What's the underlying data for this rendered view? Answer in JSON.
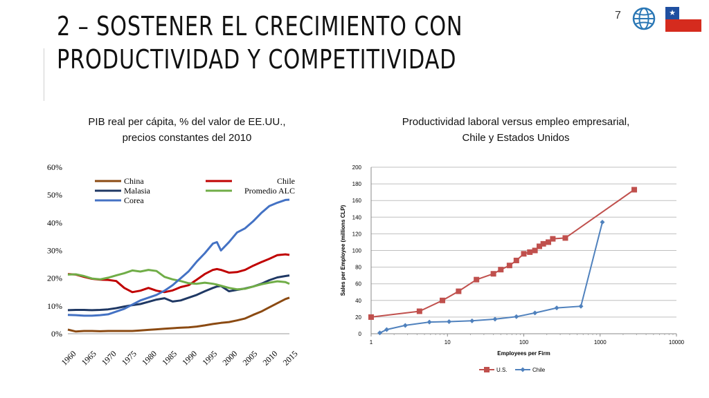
{
  "slide": {
    "title_line1": "2 – SOSTENER EL CRECIMIENTO CON",
    "title_line2": "PRODUCTIVIDAD Y COMPETITIVIDAD",
    "page_number": "7"
  },
  "chart_data": [
    {
      "type": "line",
      "title_line1": "PIB real per cápita, % del valor de EE.UU.,",
      "title_line2": "precios constantes del 2010",
      "x": [
        1960,
        1962,
        1964,
        1966,
        1968,
        1970,
        1972,
        1974,
        1976,
        1978,
        1980,
        1982,
        1984,
        1986,
        1988,
        1990,
        1992,
        1994,
        1996,
        1997,
        1998,
        2000,
        2002,
        2004,
        2006,
        2008,
        2010,
        2012,
        2014,
        2015
      ],
      "series": [
        {
          "name": "China",
          "color": "#8b4a12",
          "values": [
            1.5,
            0.8,
            1.0,
            1.0,
            0.9,
            1.0,
            1.0,
            1.0,
            1.0,
            1.2,
            1.4,
            1.6,
            1.8,
            2.0,
            2.2,
            2.3,
            2.6,
            3.0,
            3.5,
            3.7,
            3.9,
            4.2,
            4.8,
            5.5,
            6.8,
            8.0,
            9.5,
            11.0,
            12.5,
            13.0
          ]
        },
        {
          "name": "Chile",
          "color": "#c00000",
          "values": [
            21.5,
            21.3,
            20.5,
            19.8,
            19.5,
            19.4,
            19.0,
            16.5,
            15.0,
            15.5,
            16.5,
            15.5,
            15.0,
            15.6,
            16.8,
            17.5,
            19.5,
            21.5,
            23.0,
            23.3,
            23.0,
            22.0,
            22.2,
            23.0,
            24.5,
            25.8,
            27.0,
            28.3,
            28.6,
            28.4
          ]
        },
        {
          "name": "Malasia",
          "color": "#1f3864",
          "values": [
            8.5,
            8.6,
            8.6,
            8.5,
            8.6,
            8.8,
            9.2,
            9.8,
            10.3,
            10.7,
            11.5,
            12.3,
            12.8,
            11.6,
            12.0,
            13.0,
            14.0,
            15.3,
            16.5,
            17.0,
            17.2,
            15.3,
            15.8,
            16.3,
            17.0,
            18.0,
            19.3,
            20.3,
            20.8,
            21.0
          ]
        },
        {
          "name": "Promedio ALC",
          "color": "#70ad47",
          "values": [
            21.3,
            21.4,
            20.8,
            19.9,
            19.6,
            20.2,
            21.0,
            21.8,
            22.8,
            22.4,
            23.0,
            22.6,
            20.5,
            19.6,
            19.0,
            18.2,
            18.0,
            18.4,
            18.0,
            17.7,
            17.3,
            16.5,
            16.0,
            16.2,
            17.0,
            17.8,
            18.4,
            18.9,
            18.6,
            18.0
          ]
        },
        {
          "name": "Corea",
          "color": "#4472c4",
          "values": [
            6.8,
            6.7,
            6.5,
            6.5,
            6.7,
            7.0,
            8.0,
            9.0,
            10.5,
            12.0,
            13.0,
            14.0,
            15.5,
            17.5,
            20.0,
            22.5,
            26.0,
            29.0,
            32.5,
            33.0,
            30.0,
            33.0,
            36.5,
            38.0,
            40.5,
            43.5,
            46.0,
            47.2,
            48.2,
            48.3
          ]
        }
      ],
      "ylim": [
        0,
        60
      ],
      "yticks": [
        0,
        10,
        20,
        30,
        40,
        50,
        60
      ],
      "ytick_labels": [
        "0%",
        "10%",
        "20%",
        "30%",
        "40%",
        "50%",
        "60%"
      ],
      "xticks": [
        1960,
        1965,
        1970,
        1975,
        1980,
        1985,
        1990,
        1995,
        2000,
        2005,
        2010,
        2015
      ],
      "legend": "top-inside",
      "grid": false
    },
    {
      "type": "line",
      "title_line1": "Productividad laboral versus empleo empresarial,",
      "title_line2": "Chile y Estados Unidos",
      "xscale": "log",
      "xlim": [
        1,
        10000
      ],
      "xticks": [
        1,
        10,
        100,
        1000,
        10000
      ],
      "xtick_labels": [
        "1",
        "10",
        "100",
        "1000",
        "10000"
      ],
      "ylim": [
        0,
        200
      ],
      "yticks": [
        0,
        20,
        40,
        60,
        80,
        100,
        120,
        140,
        160,
        180,
        200
      ],
      "xlabel": "Employees per Firm",
      "ylabel": "Sales per Employee (millions CLP)",
      "grid": true,
      "legend": "bottom",
      "series": [
        {
          "name": "U.S.",
          "color": "#c0504d",
          "marker": "square",
          "x": [
            1,
            4.3,
            8.6,
            14,
            24,
            40,
            50,
            65,
            80,
            100,
            120,
            140,
            160,
            180,
            210,
            240,
            350,
            2800
          ],
          "y": [
            20,
            27,
            40,
            51,
            65,
            72,
            77,
            82,
            88,
            96,
            98,
            100,
            105,
            108,
            110,
            114,
            115,
            173
          ]
        },
        {
          "name": "Chile",
          "color": "#4f81bd",
          "marker": "diamond",
          "x": [
            1.3,
            1.6,
            2.8,
            5.8,
            10.5,
            21,
            42,
            80,
            140,
            270,
            560,
            1070
          ],
          "y": [
            1,
            5,
            10,
            14,
            14.5,
            15.5,
            17.5,
            20.5,
            25,
            31,
            33,
            134
          ]
        }
      ]
    }
  ]
}
